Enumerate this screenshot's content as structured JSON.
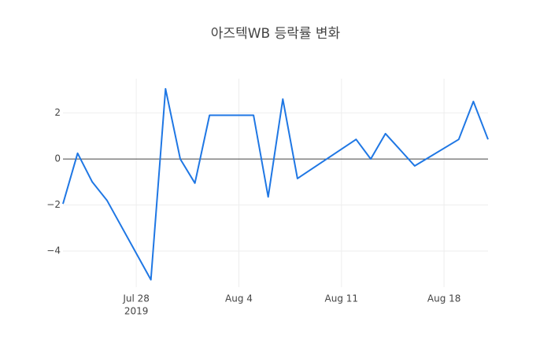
{
  "chart_data": {
    "type": "line",
    "title": "아즈텍WB 등락률 변화",
    "x": [
      "2019-07-23",
      "2019-07-24",
      "2019-07-25",
      "2019-07-26",
      "2019-07-29",
      "2019-07-30",
      "2019-07-31",
      "2019-08-01",
      "2019-08-02",
      "2019-08-05",
      "2019-08-06",
      "2019-08-07",
      "2019-08-08",
      "2019-08-12",
      "2019-08-13",
      "2019-08-14",
      "2019-08-16",
      "2019-08-19",
      "2019-08-20",
      "2019-08-21"
    ],
    "series": [
      {
        "color": "#1f77e4",
        "values": [
          -1.95,
          0.25,
          -1.0,
          -1.8,
          -5.25,
          3.05,
          0.0,
          -1.05,
          1.9,
          1.9,
          -1.65,
          2.6,
          -0.85,
          0.85,
          0.0,
          1.1,
          -0.3,
          0.85,
          2.5,
          0.85
        ]
      }
    ],
    "xlim": [
      "2019-07-23",
      "2019-08-21"
    ],
    "xticks": [
      {
        "value": "2019-07-28",
        "label": [
          "Jul 28",
          "2019"
        ]
      },
      {
        "value": "2019-08-04",
        "label": [
          "Aug 4"
        ]
      },
      {
        "value": "2019-08-11",
        "label": [
          "Aug 11"
        ]
      },
      {
        "value": "2019-08-18",
        "label": [
          "Aug 18"
        ]
      }
    ],
    "ylim": [
      -5.57,
      3.49
    ],
    "yticks": [
      {
        "value": -4,
        "label": "−4"
      },
      {
        "value": -2,
        "label": "−2"
      },
      0,
      2
    ],
    "grid": true
  }
}
